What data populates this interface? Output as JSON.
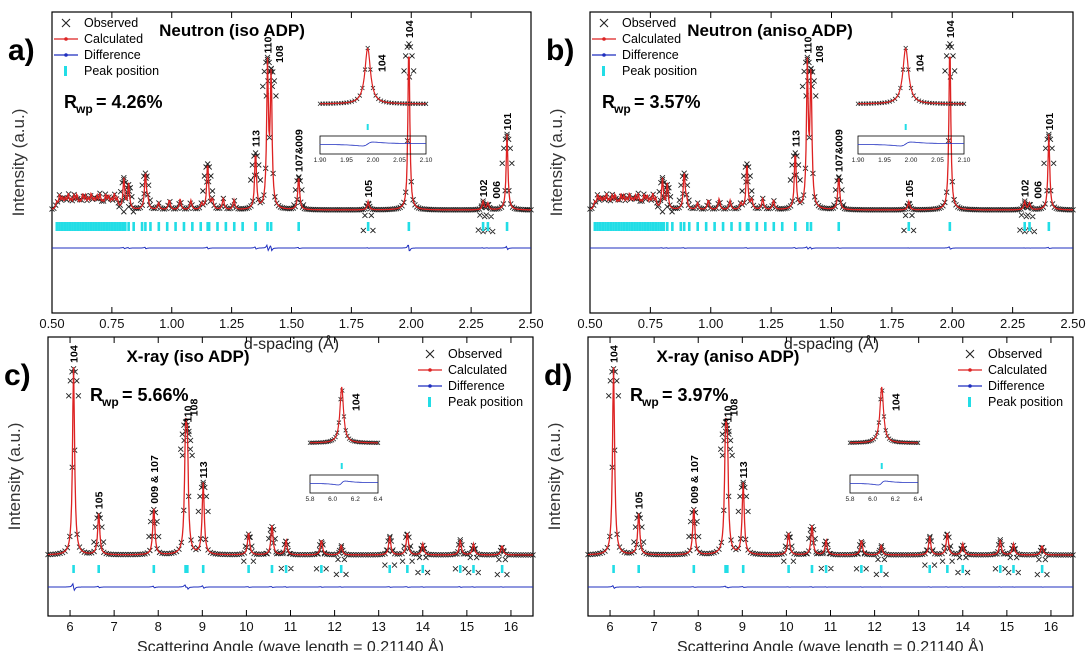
{
  "figure": {
    "legend_labels": [
      "Observed",
      "Calculated",
      "Difference",
      "Peak position"
    ],
    "y_axis_label": "Intensity (a.u.)"
  },
  "colors": {
    "observed": "#222222",
    "calculated": "#dd2222",
    "difference": "#1f2fbf",
    "peak_position": "#22dde6"
  },
  "chart_data": [
    {
      "type": "line",
      "panel_letter": "a)",
      "title": "Neutron (iso ADP)",
      "rwp_value": "= 4.26%",
      "xlabel": "d-spacing (Å)",
      "ylabel": "Intensity (a.u.)",
      "xlim": [
        0.5,
        2.5
      ],
      "x_ticks": [
        "0.50",
        "0.75",
        "1.00",
        "1.25",
        "1.50",
        "1.75",
        "2.00",
        "2.25",
        "2.50"
      ],
      "series": [
        {
          "name": "Observed",
          "style": "x markers"
        },
        {
          "name": "Calculated",
          "style": "red line"
        },
        {
          "name": "Difference",
          "style": "blue line"
        },
        {
          "name": "Peak position",
          "style": "cyan ticks"
        }
      ],
      "peaks": [
        {
          "x": 0.8,
          "h": 0.18
        },
        {
          "x": 0.82,
          "h": 0.15
        },
        {
          "x": 0.89,
          "h": 0.22
        },
        {
          "x": 1.15,
          "h": 0.28
        },
        {
          "x": 1.35,
          "h": 0.34,
          "label": "113"
        },
        {
          "x": 1.4,
          "h": 0.84,
          "label": "110"
        },
        {
          "x": 1.415,
          "h": 0.78,
          "label": "108"
        },
        {
          "x": 1.53,
          "h": 0.2,
          "label": "107&009"
        },
        {
          "x": 1.82,
          "h": 0.05,
          "label": "105"
        },
        {
          "x": 1.99,
          "h": 1.0,
          "label": "104"
        },
        {
          "x": 2.3,
          "h": 0.05,
          "label": "102"
        },
        {
          "x": 2.32,
          "h": 0.04,
          "label": "006"
        },
        {
          "x": 2.4,
          "h": 0.45,
          "label": "101"
        }
      ],
      "inset": {
        "label": "104",
        "xlim": [
          1.9,
          2.1
        ],
        "x_ticks": [
          "1.90",
          "1.95",
          "2.00",
          "2.05",
          "2.10"
        ]
      }
    },
    {
      "type": "line",
      "panel_letter": "b)",
      "title": "Neutron (aniso ADP)",
      "rwp_value": "= 3.57%",
      "xlabel": "d-spacing (Å)",
      "ylabel": "Intensity (a.u.)",
      "xlim": [
        0.5,
        2.5
      ],
      "x_ticks": [
        "0.50",
        "0.75",
        "1.00",
        "1.25",
        "1.50",
        "1.75",
        "2.00",
        "2.25",
        "2.50"
      ],
      "series": [
        {
          "name": "Observed",
          "style": "x markers"
        },
        {
          "name": "Calculated",
          "style": "red line"
        },
        {
          "name": "Difference",
          "style": "blue line"
        },
        {
          "name": "Peak position",
          "style": "cyan ticks"
        }
      ],
      "peaks": [
        {
          "x": 0.8,
          "h": 0.18
        },
        {
          "x": 0.82,
          "h": 0.15
        },
        {
          "x": 0.89,
          "h": 0.22
        },
        {
          "x": 1.15,
          "h": 0.28
        },
        {
          "x": 1.35,
          "h": 0.34,
          "label": "113"
        },
        {
          "x": 1.4,
          "h": 0.84,
          "label": "110"
        },
        {
          "x": 1.415,
          "h": 0.78,
          "label": "108"
        },
        {
          "x": 1.53,
          "h": 0.2,
          "label": "107&009"
        },
        {
          "x": 1.82,
          "h": 0.05,
          "label": "105"
        },
        {
          "x": 1.99,
          "h": 1.0,
          "label": "104"
        },
        {
          "x": 2.3,
          "h": 0.05,
          "label": "102"
        },
        {
          "x": 2.32,
          "h": 0.04,
          "label": "006"
        },
        {
          "x": 2.4,
          "h": 0.45,
          "label": "101"
        }
      ],
      "inset": {
        "label": "104",
        "xlim": [
          1.9,
          2.1
        ],
        "x_ticks": [
          "1.90",
          "1.95",
          "2.00",
          "2.05",
          "2.10"
        ]
      }
    },
    {
      "type": "line",
      "panel_letter": "c)",
      "title": "X-ray (iso ADP)",
      "rwp_value": "= 5.66%",
      "xlabel": "Scattering Angle (wave length = 0.21140 Å)",
      "ylabel": "Intensity (a.u.)",
      "xlim": [
        5.5,
        16.5
      ],
      "x_ticks": [
        "6",
        "7",
        "8",
        "9",
        "10",
        "11",
        "12",
        "13",
        "14",
        "15",
        "16"
      ],
      "series": [
        {
          "name": "Observed",
          "style": "x markers"
        },
        {
          "name": "Calculated",
          "style": "red line"
        },
        {
          "name": "Difference",
          "style": "blue line"
        },
        {
          "name": "Peak position",
          "style": "cyan ticks"
        }
      ],
      "peaks": [
        {
          "x": 6.08,
          "h": 1.0,
          "label": "104"
        },
        {
          "x": 6.65,
          "h": 0.22,
          "label": "105"
        },
        {
          "x": 7.9,
          "h": 0.25,
          "label": "009 & 107"
        },
        {
          "x": 8.62,
          "h": 0.55,
          "label": "108"
        },
        {
          "x": 8.66,
          "h": 0.5,
          "label": "110"
        },
        {
          "x": 9.02,
          "h": 0.38,
          "label": "113"
        },
        {
          "x": 10.05,
          "h": 0.12
        },
        {
          "x": 10.58,
          "h": 0.16
        },
        {
          "x": 10.9,
          "h": 0.08
        },
        {
          "x": 11.7,
          "h": 0.08
        },
        {
          "x": 12.15,
          "h": 0.05
        },
        {
          "x": 13.25,
          "h": 0.1
        },
        {
          "x": 13.65,
          "h": 0.12
        },
        {
          "x": 14.0,
          "h": 0.06
        },
        {
          "x": 14.85,
          "h": 0.08
        },
        {
          "x": 15.15,
          "h": 0.06
        },
        {
          "x": 15.8,
          "h": 0.05
        }
      ],
      "inset": {
        "label": "104",
        "xlim": [
          5.8,
          6.4
        ],
        "x_ticks": [
          "5.8",
          "6.0",
          "6.2",
          "6.4"
        ]
      }
    },
    {
      "type": "line",
      "panel_letter": "d)",
      "title": "X-ray (aniso ADP)",
      "rwp_value": "= 3.97%",
      "xlabel": "Scattering Angle (wave length = 0.21140 Å)",
      "ylabel": "Intensity (a.u.)",
      "xlim": [
        5.5,
        16.5
      ],
      "x_ticks": [
        "6",
        "7",
        "8",
        "9",
        "10",
        "11",
        "12",
        "13",
        "14",
        "15",
        "16"
      ],
      "series": [
        {
          "name": "Observed",
          "style": "x markers"
        },
        {
          "name": "Calculated",
          "style": "red line"
        },
        {
          "name": "Difference",
          "style": "blue line"
        },
        {
          "name": "Peak position",
          "style": "cyan ticks"
        }
      ],
      "peaks": [
        {
          "x": 6.08,
          "h": 1.0,
          "label": "104"
        },
        {
          "x": 6.65,
          "h": 0.22,
          "label": "105"
        },
        {
          "x": 7.9,
          "h": 0.25,
          "label": "009 & 107"
        },
        {
          "x": 8.62,
          "h": 0.55,
          "label": "108"
        },
        {
          "x": 8.66,
          "h": 0.5,
          "label": "110"
        },
        {
          "x": 9.02,
          "h": 0.38,
          "label": "113"
        },
        {
          "x": 10.05,
          "h": 0.12
        },
        {
          "x": 10.58,
          "h": 0.16
        },
        {
          "x": 10.9,
          "h": 0.08
        },
        {
          "x": 11.7,
          "h": 0.08
        },
        {
          "x": 12.15,
          "h": 0.05
        },
        {
          "x": 13.25,
          "h": 0.1
        },
        {
          "x": 13.65,
          "h": 0.12
        },
        {
          "x": 14.0,
          "h": 0.06
        },
        {
          "x": 14.85,
          "h": 0.08
        },
        {
          "x": 15.15,
          "h": 0.06
        },
        {
          "x": 15.8,
          "h": 0.05
        }
      ],
      "inset": {
        "label": "104",
        "xlim": [
          5.8,
          6.4
        ],
        "x_ticks": [
          "5.8",
          "6.0",
          "6.2",
          "6.4"
        ]
      }
    }
  ]
}
